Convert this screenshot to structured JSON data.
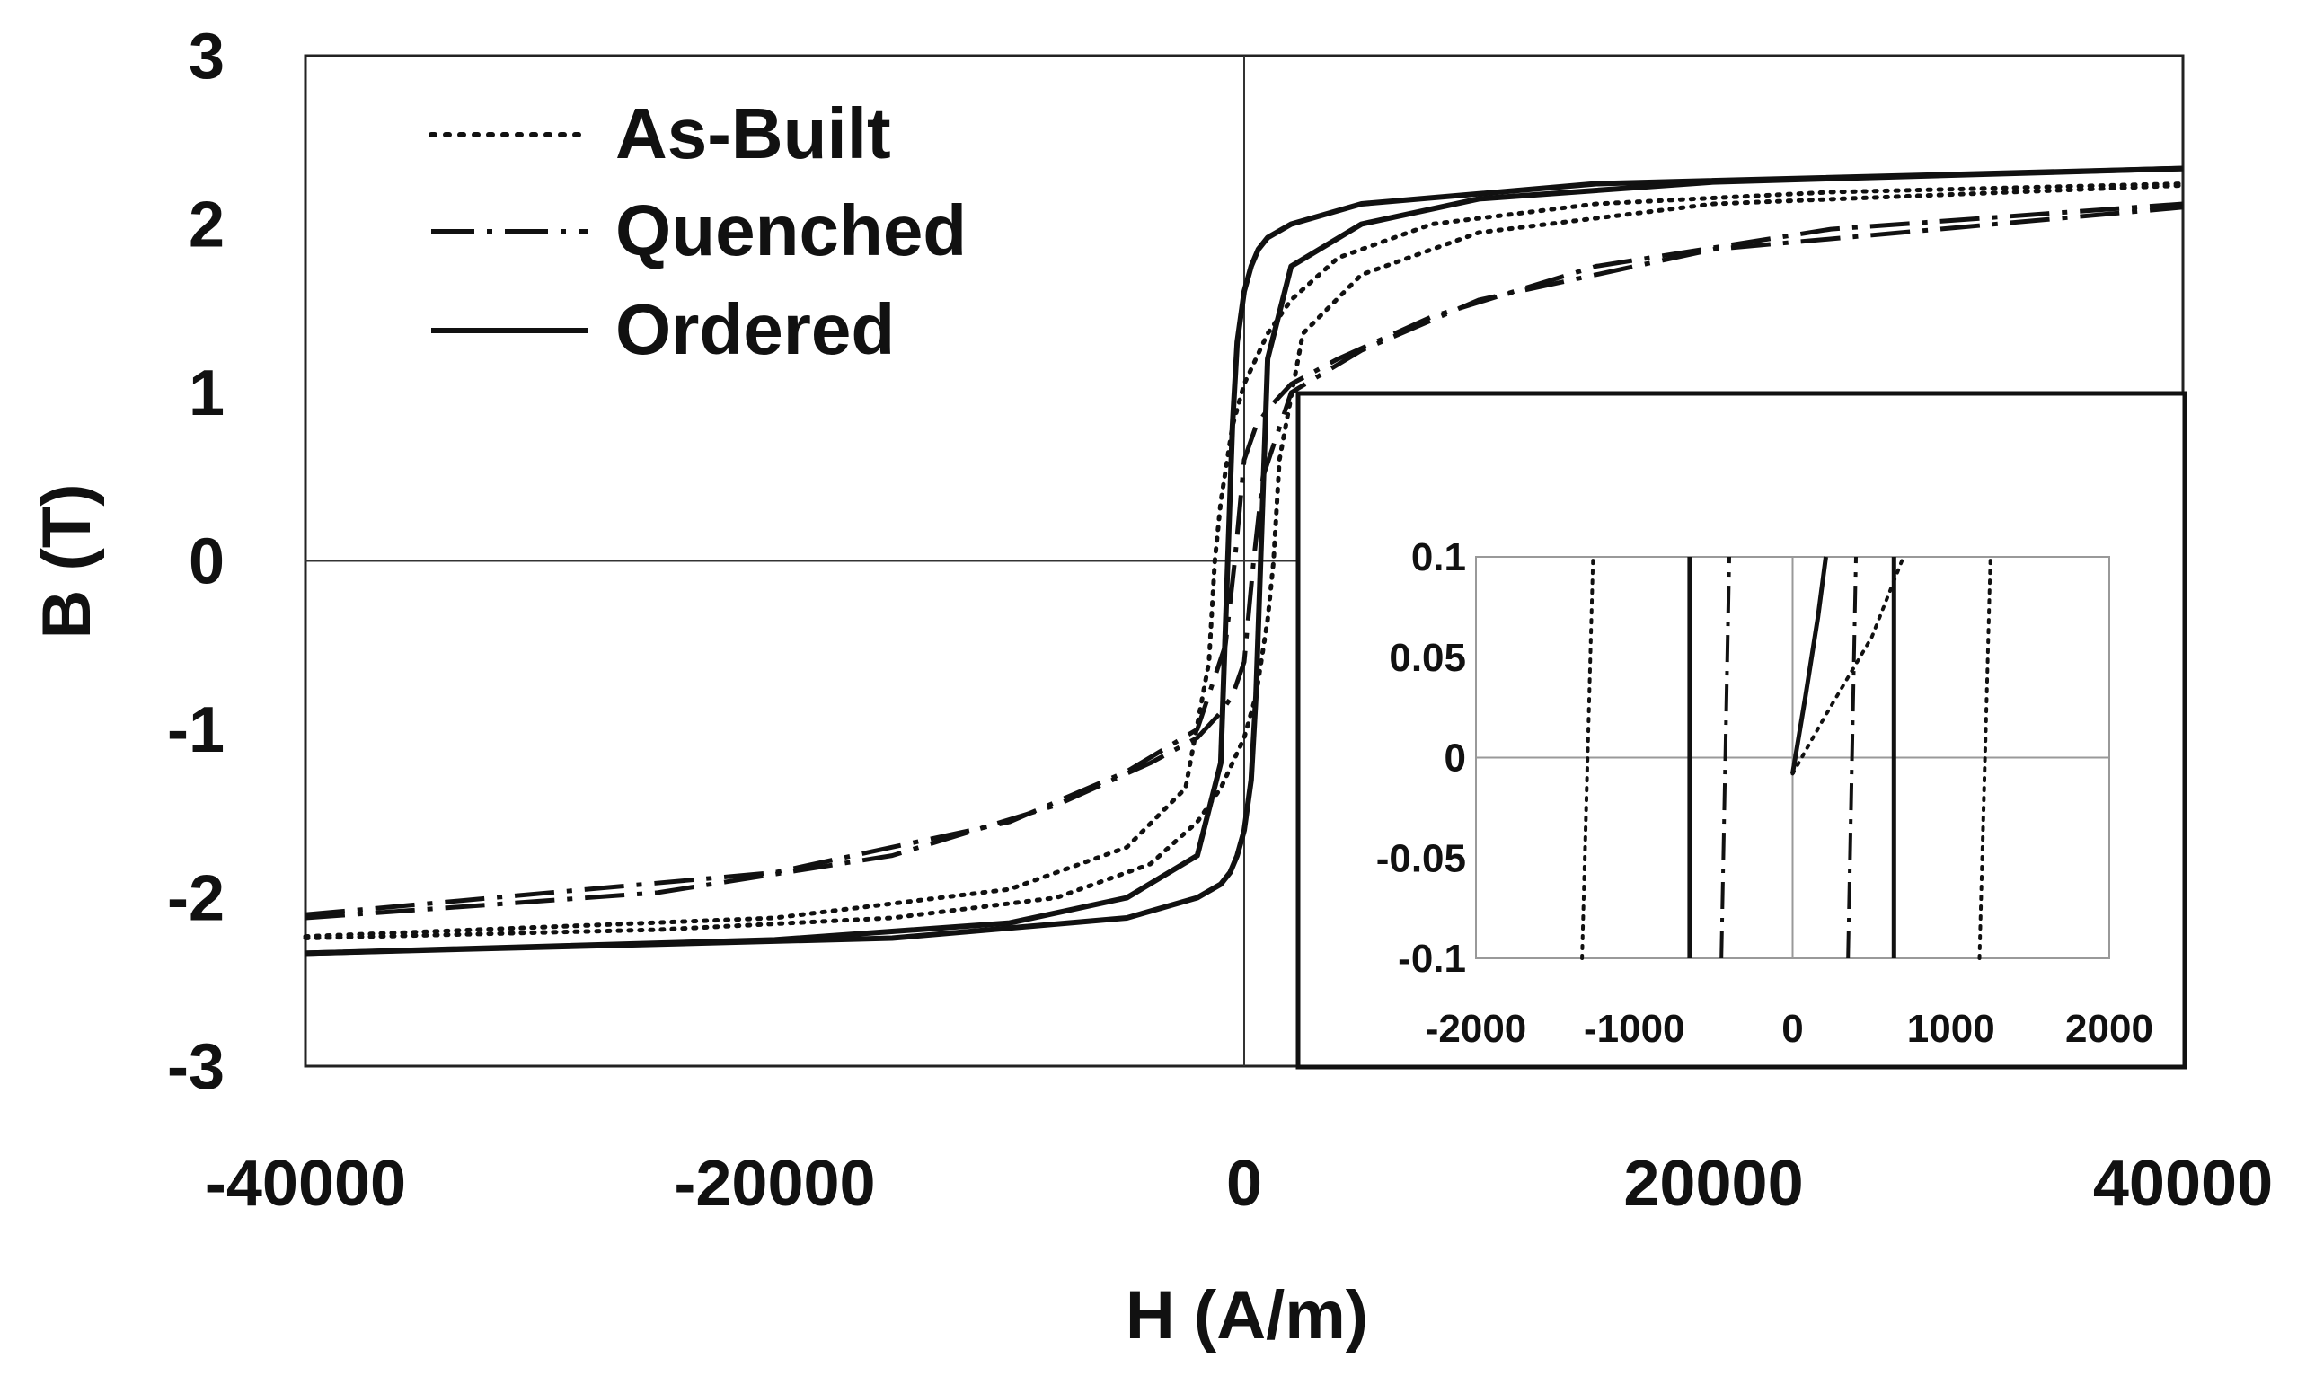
{
  "chart_data": [
    {
      "id": "main",
      "type": "line",
      "title": "",
      "xlabel": "H (A/m)",
      "ylabel": "B (T)",
      "xlim": [
        -40000,
        40000
      ],
      "ylim": [
        -3,
        3
      ],
      "xticks": [
        -40000,
        -20000,
        0,
        20000,
        40000
      ],
      "yticks": [
        -3,
        -2,
        -1,
        0,
        1,
        2,
        3
      ],
      "xtick_labels": [
        "-40000",
        "-20000",
        "0",
        "20000",
        "40000"
      ],
      "ytick_labels": [
        "-3",
        "-2",
        "-1",
        "0",
        "1",
        "2",
        "3"
      ],
      "grid": false,
      "legend_position": "top-left",
      "series": [
        {
          "name": "As-Built",
          "dash": "dotted",
          "upper_branch": {
            "x": [
              -40000,
              -20000,
              -10000,
              -5000,
              -2500,
              -1500,
              -1250,
              -1000,
              -500,
              0,
              1000,
              2000,
              4000,
              8000,
              15000,
              25000,
              40000
            ],
            "y": [
              -2.23,
              -2.12,
              -1.95,
              -1.7,
              -1.35,
              -0.6,
              0.0,
              0.35,
              0.8,
              1.05,
              1.35,
              1.55,
              1.8,
              2.0,
              2.12,
              2.19,
              2.24
            ]
          },
          "lower_branch": {
            "x": [
              -40000,
              -25000,
              -15000,
              -8000,
              -4000,
              -2000,
              -1000,
              0,
              500,
              1000,
              1250,
              1500,
              2500,
              5000,
              10000,
              20000,
              40000
            ],
            "y": [
              -2.24,
              -2.19,
              -2.12,
              -2.0,
              -1.8,
              -1.55,
              -1.35,
              -1.05,
              -0.8,
              -0.35,
              0.0,
              0.6,
              1.35,
              1.7,
              1.95,
              2.12,
              2.23
            ]
          }
        },
        {
          "name": "Quenched",
          "dash": "dash-dot",
          "upper_branch": {
            "x": [
              -40000,
              -20000,
              -10000,
              -5000,
              -2000,
              -800,
              -400,
              -200,
              0,
              500,
              1000,
              2000,
              4000,
              8000,
              15000,
              25000,
              40000
            ],
            "y": [
              -2.1,
              -1.85,
              -1.55,
              -1.25,
              -1.0,
              -0.5,
              0.0,
              0.3,
              0.6,
              0.8,
              0.9,
              1.05,
              1.2,
              1.45,
              1.75,
              1.97,
              2.12
            ]
          },
          "lower_branch": {
            "x": [
              -40000,
              -25000,
              -15000,
              -8000,
              -4000,
              -2000,
              -1000,
              -500,
              0,
              200,
              400,
              800,
              2000,
              5000,
              10000,
              20000,
              40000
            ],
            "y": [
              -2.12,
              -1.97,
              -1.75,
              -1.45,
              -1.2,
              -1.05,
              -0.9,
              -0.8,
              -0.6,
              -0.3,
              0.0,
              0.5,
              1.0,
              1.25,
              1.55,
              1.85,
              2.1
            ]
          }
        },
        {
          "name": "Ordered",
          "dash": "solid",
          "upper_branch": {
            "x": [
              -40000,
              -20000,
              -10000,
              -5000,
              -2000,
              -1000,
              -700,
              -500,
              -300,
              0,
              300,
              600,
              1000,
              2000,
              5000,
              15000,
              40000
            ],
            "y": [
              -2.33,
              -2.25,
              -2.15,
              -2.0,
              -1.75,
              -1.2,
              0.0,
              0.8,
              1.3,
              1.6,
              1.75,
              1.85,
              1.92,
              2.0,
              2.12,
              2.24,
              2.33
            ]
          },
          "lower_branch": {
            "x": [
              -40000,
              -15000,
              -5000,
              -2000,
              -1000,
              -600,
              -300,
              0,
              300,
              500,
              700,
              1000,
              2000,
              5000,
              10000,
              20000,
              40000
            ],
            "y": [
              -2.33,
              -2.24,
              -2.12,
              -2.0,
              -1.92,
              -1.85,
              -1.75,
              -1.6,
              -1.3,
              -0.8,
              0.0,
              1.2,
              1.75,
              2.0,
              2.15,
              2.25,
              2.33
            ]
          }
        }
      ]
    },
    {
      "id": "inset",
      "type": "line",
      "title": "",
      "xlabel": "",
      "ylabel": "",
      "xlim": [
        -2000,
        2000
      ],
      "ylim": [
        -0.1,
        0.1
      ],
      "xticks": [
        -2000,
        -1000,
        0,
        1000,
        2000
      ],
      "yticks": [
        -0.1,
        -0.05,
        0,
        0.05,
        0.1
      ],
      "xtick_labels": [
        "-2000",
        "-1000",
        "0",
        "1000",
        "2000"
      ],
      "ytick_labels": [
        "-0.1",
        "-0.05",
        "0",
        "0.05",
        "0.1"
      ],
      "grid": false,
      "series": [
        {
          "name": "As-Built",
          "dash": "dotted",
          "segments": [
            {
              "x": [
                -1330,
                -1260
              ],
              "y": [
                -0.1,
                0.1
              ]
            },
            {
              "x": [
                1180,
                1250
              ],
              "y": [
                -0.1,
                0.1
              ]
            },
            {
              "x": [
                0,
                200,
                500,
                700
              ],
              "y": [
                -0.008,
                0.02,
                0.06,
                0.1
              ]
            }
          ]
        },
        {
          "name": "Quenched",
          "dash": "dash-dot",
          "segments": [
            {
              "x": [
                -450,
                -400
              ],
              "y": [
                -0.1,
                0.1
              ]
            },
            {
              "x": [
                350,
                400
              ],
              "y": [
                -0.1,
                0.1
              ]
            }
          ]
        },
        {
          "name": "Ordered",
          "dash": "solid",
          "segments": [
            {
              "x": [
                -650,
                -650
              ],
              "y": [
                -0.1,
                0.1
              ]
            },
            {
              "x": [
                640,
                640
              ],
              "y": [
                -0.1,
                0.1
              ]
            },
            {
              "x": [
                0,
                80,
                160,
                210
              ],
              "y": [
                -0.008,
                0.03,
                0.07,
                0.1
              ]
            }
          ]
        }
      ]
    }
  ],
  "legend": {
    "items": [
      {
        "label": "As-Built",
        "dash": "dotted"
      },
      {
        "label": "Quenched",
        "dash": "dash-dot"
      },
      {
        "label": "Ordered",
        "dash": "solid"
      }
    ]
  },
  "colors": {
    "line": "#111111",
    "axis": "#222222",
    "inset_axis": "#999999",
    "background": "#ffffff"
  }
}
